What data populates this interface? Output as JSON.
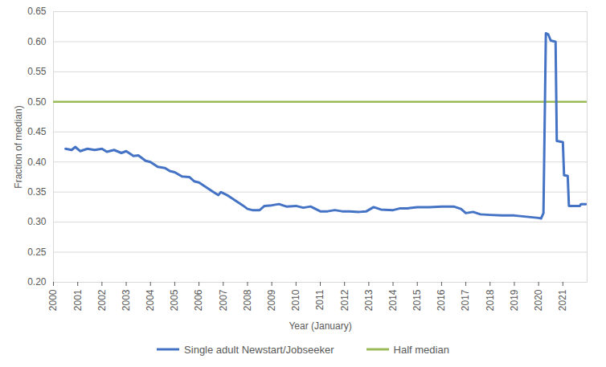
{
  "chart_data": {
    "type": "line",
    "x_label": "Year (January)",
    "y_label": "Fraction of median)",
    "x": [
      2000,
      2000.5,
      2000.75,
      2000.9,
      2001.1,
      2001.4,
      2001.7,
      2002.0,
      2002.2,
      2002.5,
      2002.8,
      2003.0,
      2003.3,
      2003.5,
      2003.8,
      2004.0,
      2004.3,
      2004.6,
      2004.8,
      2005.0,
      2005.3,
      2005.6,
      2005.8,
      2006.0,
      2006.3,
      2006.6,
      2006.8,
      2006.9,
      2007.2,
      2007.5,
      2007.8,
      2008.0,
      2008.2,
      2008.5,
      2008.7,
      2009.0,
      2009.3,
      2009.6,
      2010.0,
      2010.3,
      2010.6,
      2011.0,
      2011.3,
      2011.6,
      2011.9,
      2012.2,
      2012.6,
      2012.9,
      2013.2,
      2013.5,
      2014.0,
      2014.3,
      2014.6,
      2015.0,
      2015.5,
      2016.0,
      2016.5,
      2016.8,
      2017.0,
      2017.3,
      2017.6,
      2018.0,
      2018.5,
      2019.0,
      2019.5,
      2020.0,
      2020.1,
      2020.2,
      2020.3,
      2020.4,
      2020.5,
      2020.7,
      2020.75,
      2021.0,
      2021.05,
      2021.2,
      2021.25,
      2021.5,
      2021.7,
      2021.75,
      2021.95,
      2022
    ],
    "series": [
      {
        "name": "Single adult Newstart/Jobseeker",
        "color": "#4472c4",
        "values": [
          null,
          0.422,
          0.42,
          0.425,
          0.418,
          0.422,
          0.42,
          0.422,
          0.417,
          0.42,
          0.415,
          0.418,
          0.41,
          0.411,
          0.402,
          0.4,
          0.392,
          0.39,
          0.385,
          0.383,
          0.376,
          0.375,
          0.368,
          0.366,
          0.358,
          0.35,
          0.345,
          0.35,
          0.344,
          0.336,
          0.328,
          0.322,
          0.32,
          0.32,
          0.327,
          0.328,
          0.33,
          0.326,
          0.327,
          0.324,
          0.326,
          0.318,
          0.318,
          0.32,
          0.318,
          0.318,
          0.317,
          0.318,
          0.325,
          0.321,
          0.32,
          0.323,
          0.323,
          0.325,
          0.325,
          0.326,
          0.326,
          0.322,
          0.315,
          0.317,
          0.313,
          0.312,
          0.311,
          0.311,
          0.309,
          0.307,
          0.306,
          0.315,
          0.614,
          0.612,
          0.602,
          0.6,
          0.435,
          0.433,
          0.378,
          0.377,
          0.327,
          0.327,
          0.327,
          0.33,
          0.33,
          null
        ]
      },
      {
        "name": "Half median",
        "color": "#9bbb59",
        "values": [
          0.5,
          0.5,
          0.5,
          0.5,
          0.5,
          0.5,
          0.5,
          0.5,
          0.5,
          0.5,
          0.5,
          0.5,
          0.5,
          0.5,
          0.5,
          0.5,
          0.5,
          0.5,
          0.5,
          0.5,
          0.5,
          0.5,
          0.5,
          0.5,
          0.5,
          0.5,
          0.5,
          0.5,
          0.5,
          0.5,
          0.5,
          0.5,
          0.5,
          0.5,
          0.5,
          0.5,
          0.5,
          0.5,
          0.5,
          0.5,
          0.5,
          0.5,
          0.5,
          0.5,
          0.5,
          0.5,
          0.5,
          0.5,
          0.5,
          0.5,
          0.5,
          0.5,
          0.5,
          0.5,
          0.5,
          0.5,
          0.5,
          0.5,
          0.5,
          0.5,
          0.5,
          0.5,
          0.5,
          0.5,
          0.5,
          0.5,
          0.5,
          0.5,
          0.5,
          0.5,
          0.5,
          0.5,
          0.5,
          0.5,
          0.5,
          0.5,
          0.5,
          0.5,
          0.5,
          0.5,
          0.5,
          0.5
        ]
      }
    ],
    "xlim": [
      2000,
      2022
    ],
    "xticks": [
      2000,
      2001,
      2002,
      2003,
      2004,
      2005,
      2006,
      2007,
      2008,
      2009,
      2010,
      2011,
      2012,
      2013,
      2014,
      2015,
      2016,
      2017,
      2018,
      2019,
      2020,
      2021
    ],
    "ylim": [
      0.2,
      0.65
    ],
    "yticks": [
      {
        "value": 0.2,
        "label": "0.20"
      },
      {
        "value": 0.25,
        "label": "0.25"
      },
      {
        "value": 0.3,
        "label": "0.30"
      },
      {
        "value": 0.35,
        "label": "0.35"
      },
      {
        "value": 0.4,
        "label": "0.40"
      },
      {
        "value": 0.45,
        "label": "0.45"
      },
      {
        "value": 0.5,
        "label": "0.50"
      },
      {
        "value": 0.55,
        "label": "0.55"
      },
      {
        "value": 0.6,
        "label": "0.60"
      },
      {
        "value": 0.65,
        "label": "0.65"
      }
    ],
    "grid": true,
    "legend": "bottom"
  }
}
